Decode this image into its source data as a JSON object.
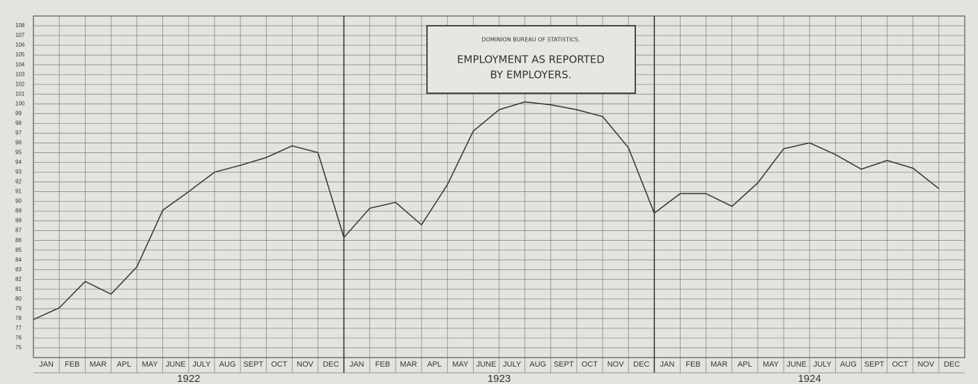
{
  "chart_data": {
    "type": "line",
    "title": "DOMINION BUREAU OF STATISTICS.",
    "subtitle_lines": [
      "EMPLOYMENT AS REPORTED",
      "BY EMPLOYERS."
    ],
    "categories": [
      "JAN",
      "FEB",
      "MAR",
      "APL",
      "MAY",
      "JUNE",
      "JULY",
      "AUG",
      "SEPT",
      "OCT",
      "NOV",
      "DEC",
      "JAN",
      "FEB",
      "MAR",
      "APL",
      "MAY",
      "JUNE",
      "JULY",
      "AUG",
      "SEPT",
      "OCT",
      "NOV",
      "DEC",
      "JAN",
      "FEB",
      "MAR",
      "APL",
      "MAY",
      "JUNE",
      "JULY",
      "AUG",
      "SEPT",
      "OCT",
      "NOV",
      "DEC"
    ],
    "year_labels": [
      "1922",
      "1923",
      "1924"
    ],
    "series": [
      {
        "name": "Employment",
        "color": "#3a3a3a",
        "values": [
          77.9,
          79.1,
          81.8,
          80.5,
          83.3,
          89.1,
          91.0,
          93.0,
          93.7,
          94.5,
          95.7,
          95.0,
          86.3,
          89.3,
          89.9,
          87.6,
          91.7,
          97.2,
          99.4,
          100.2,
          99.9,
          99.4,
          98.7,
          95.5,
          88.8,
          90.8,
          90.8,
          89.5,
          91.9,
          95.4,
          96.0,
          94.8,
          93.3,
          94.2,
          93.4,
          91.3
        ]
      }
    ],
    "ylim": [
      74,
      109
    ],
    "yticks": [
      75,
      76,
      77,
      78,
      79,
      80,
      81,
      82,
      83,
      84,
      85,
      86,
      87,
      88,
      89,
      90,
      91,
      92,
      93,
      94,
      95,
      96,
      97,
      98,
      99,
      100,
      101,
      102,
      103,
      104,
      105,
      106,
      107,
      108
    ],
    "grid": true
  }
}
